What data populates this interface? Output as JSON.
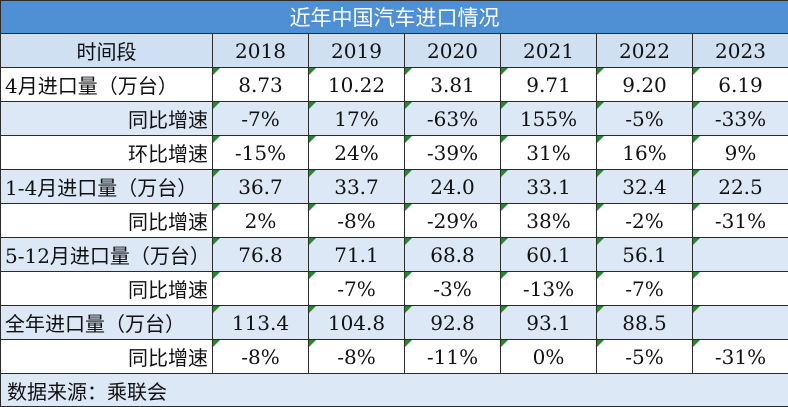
{
  "title": "近年中国汽车进口情况",
  "header": {
    "period_label": "时间段",
    "years": [
      "2018",
      "2019",
      "2020",
      "2021",
      "2022",
      "2023"
    ]
  },
  "rows": [
    {
      "label": "4月进口量（万台）",
      "indent": false,
      "shade": false,
      "values": [
        "8.73",
        "10.22",
        "3.81",
        "9.71",
        "9.20",
        "6.19"
      ]
    },
    {
      "label": "同比增速",
      "indent": true,
      "shade": true,
      "values": [
        "-7%",
        "17%",
        "-63%",
        "155%",
        "-5%",
        "-33%"
      ]
    },
    {
      "label": "环比增速",
      "indent": true,
      "shade": false,
      "values": [
        "-15%",
        "24%",
        "-39%",
        "31%",
        "16%",
        "9%"
      ]
    },
    {
      "label": "1-4月进口量（万台）",
      "indent": false,
      "shade": true,
      "values": [
        "36.7",
        "33.7",
        "24.0",
        "33.1",
        "32.4",
        "22.5"
      ]
    },
    {
      "label": "同比增速",
      "indent": true,
      "shade": false,
      "values": [
        "2%",
        "-8%",
        "-29%",
        "38%",
        "-2%",
        "-31%"
      ]
    },
    {
      "label": "5-12月进口量（万台）",
      "indent": false,
      "shade": true,
      "values": [
        "76.8",
        "71.1",
        "68.8",
        "60.1",
        "56.1",
        ""
      ]
    },
    {
      "label": "同比增速",
      "indent": true,
      "shade": false,
      "values": [
        "",
        "-7%",
        "-3%",
        "-13%",
        "-7%",
        ""
      ]
    },
    {
      "label": "全年进口量（万台）",
      "indent": false,
      "shade": true,
      "values": [
        "113.4",
        "104.8",
        "92.8",
        "93.1",
        "88.5",
        ""
      ]
    },
    {
      "label": "同比增速",
      "indent": true,
      "shade": false,
      "values": [
        "-8%",
        "-8%",
        "-11%",
        "0%",
        "-5%",
        "-31%"
      ]
    }
  ],
  "source": "数据来源：乘联会",
  "colors": {
    "title_bg": "#4f8fd4",
    "header_bg": "#cfe0f2",
    "shade_bg": "#dce8f5",
    "flag": "#1f8a2e"
  }
}
